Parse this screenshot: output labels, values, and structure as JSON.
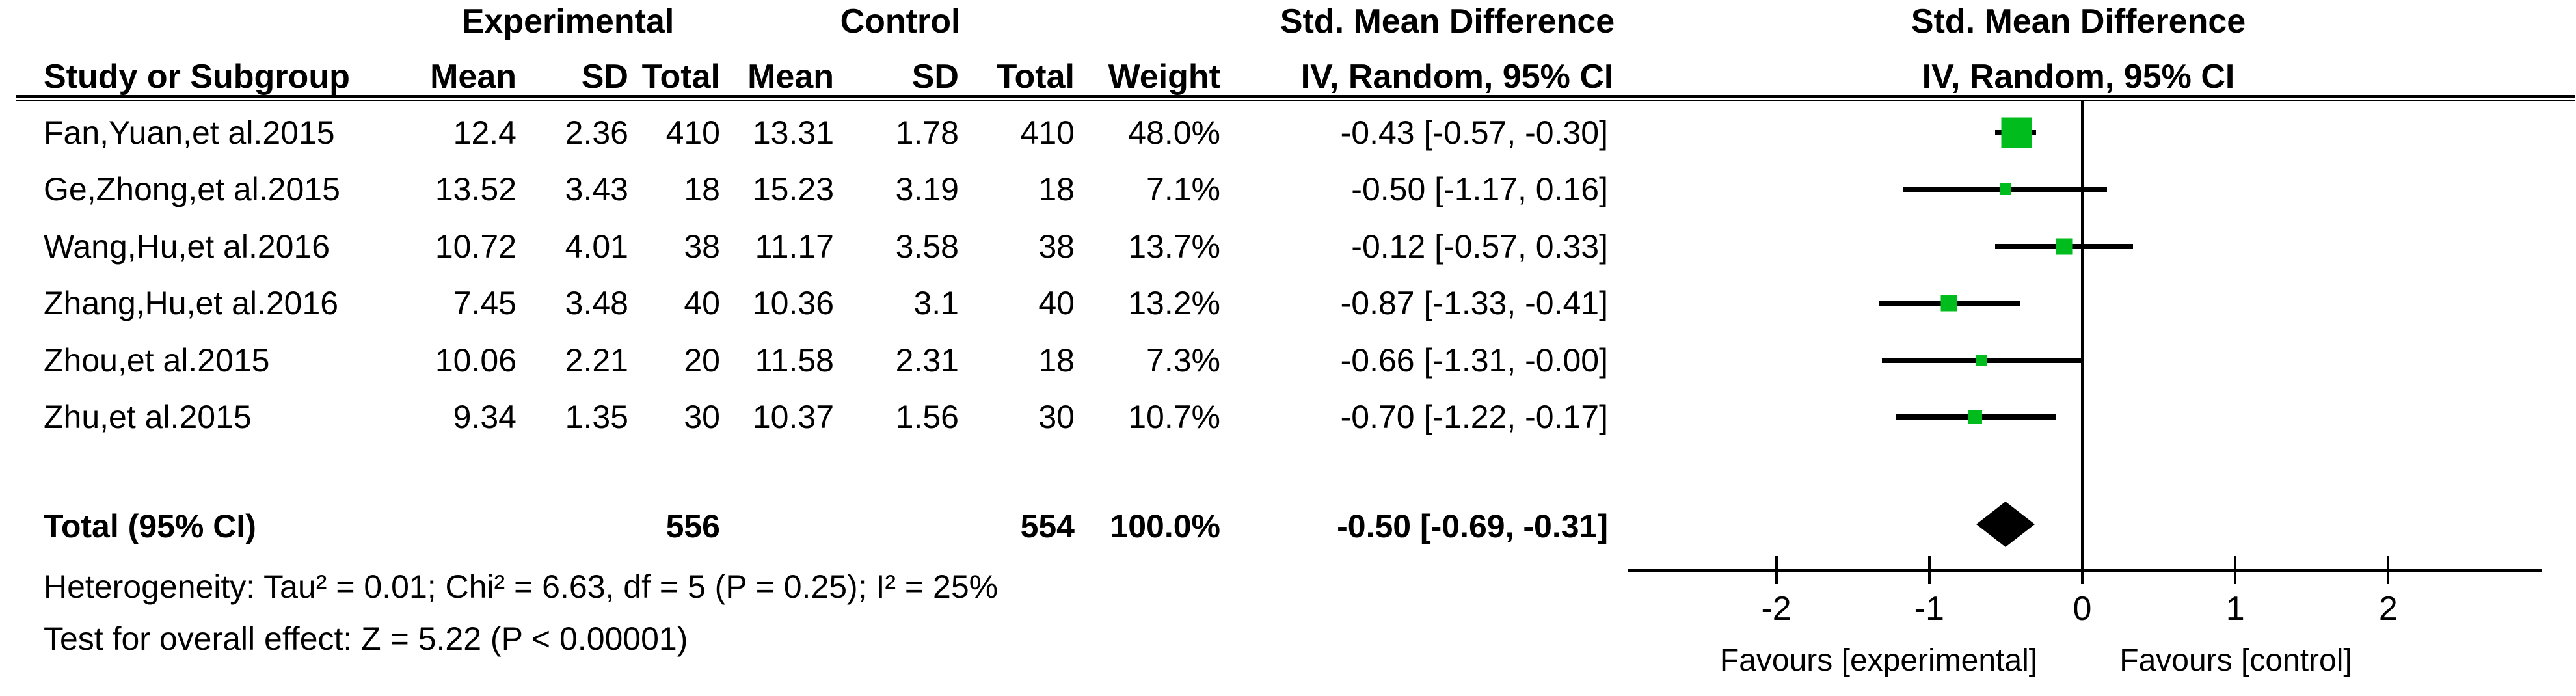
{
  "table": {
    "group_headers": {
      "experimental": "Experimental",
      "control": "Control",
      "effect": "Std. Mean Difference"
    },
    "col_headers": {
      "study": "Study or Subgroup",
      "mean_exp": "Mean",
      "sd_exp": "SD",
      "total_exp": "Total",
      "mean_ctrl": "Mean",
      "sd_ctrl": "SD",
      "total_ctrl": "Total",
      "weight": "Weight",
      "effect": "IV, Random, 95% CI"
    },
    "heterogeneity": "Heterogeneity: Tau² = 0.01; Chi² = 6.63, df = 5 (P = 0.25); I² = 25%",
    "overall_effect": "Test for overall effect: Z = 5.22 (P < 0.00001)"
  },
  "plot": {
    "title": "Std. Mean Difference",
    "subtitle": "IV, Random, 95% CI",
    "favours_left": "Favours [experimental]",
    "favours_right": "Favours [control]",
    "marker_color": "#00bc1c",
    "diamond_color": "#000000",
    "axis_color": "#000000"
  },
  "chart_data": {
    "type": "forest",
    "effect_measure": "Std. Mean Difference, IV, Random, 95% CI",
    "xlabel_ticks": [
      "-2",
      "-1",
      "0",
      "1",
      "2"
    ],
    "tick_values": [
      -2,
      -1,
      0,
      1,
      2
    ],
    "axis_range": [
      -3,
      3
    ],
    "studies": [
      {
        "study": "Fan,Yuan,et al.2015",
        "e_mean": "12.4",
        "e_sd": "2.36",
        "e_total": "410",
        "c_mean": "13.31",
        "c_sd": "1.78",
        "c_total": "410",
        "weight_text": "48.0%",
        "weight": 48.0,
        "effect_text": "-0.43 [-0.57, -0.30]",
        "est": -0.43,
        "lo": -0.57,
        "hi": -0.3
      },
      {
        "study": "Ge,Zhong,et al.2015",
        "e_mean": "13.52",
        "e_sd": "3.43",
        "e_total": "18",
        "c_mean": "15.23",
        "c_sd": "3.19",
        "c_total": "18",
        "weight_text": "7.1%",
        "weight": 7.1,
        "effect_text": "-0.50 [-1.17, 0.16]",
        "est": -0.5,
        "lo": -1.17,
        "hi": 0.16
      },
      {
        "study": "Wang,Hu,et al.2016",
        "e_mean": "10.72",
        "e_sd": "4.01",
        "e_total": "38",
        "c_mean": "11.17",
        "c_sd": "3.58",
        "c_total": "38",
        "weight_text": "13.7%",
        "weight": 13.7,
        "effect_text": "-0.12 [-0.57, 0.33]",
        "est": -0.12,
        "lo": -0.57,
        "hi": 0.33
      },
      {
        "study": "Zhang,Hu,et al.2016",
        "e_mean": "7.45",
        "e_sd": "3.48",
        "e_total": "40",
        "c_mean": "10.36",
        "c_sd": "3.1",
        "c_total": "40",
        "weight_text": "13.2%",
        "weight": 13.2,
        "effect_text": "-0.87 [-1.33, -0.41]",
        "est": -0.87,
        "lo": -1.33,
        "hi": -0.41
      },
      {
        "study": "Zhou,et al.2015",
        "e_mean": "10.06",
        "e_sd": "2.21",
        "e_total": "20",
        "c_mean": "11.58",
        "c_sd": "2.31",
        "c_total": "18",
        "weight_text": "7.3%",
        "weight": 7.3,
        "effect_text": "-0.66 [-1.31, -0.00]",
        "est": -0.66,
        "lo": -1.31,
        "hi": 0.0
      },
      {
        "study": "Zhu,et al.2015",
        "e_mean": "9.34",
        "e_sd": "1.35",
        "e_total": "30",
        "c_mean": "10.37",
        "c_sd": "1.56",
        "c_total": "30",
        "weight_text": "10.7%",
        "weight": 10.7,
        "effect_text": "-0.70 [-1.22, -0.17]",
        "est": -0.7,
        "lo": -1.22,
        "hi": -0.17
      }
    ],
    "total": {
      "label": "Total (95% CI)",
      "e_total": "556",
      "c_total": "554",
      "weight_text": "100.0%",
      "effect_text": "-0.50 [-0.69, -0.31]",
      "est": -0.5,
      "lo": -0.69,
      "hi": -0.31
    }
  }
}
